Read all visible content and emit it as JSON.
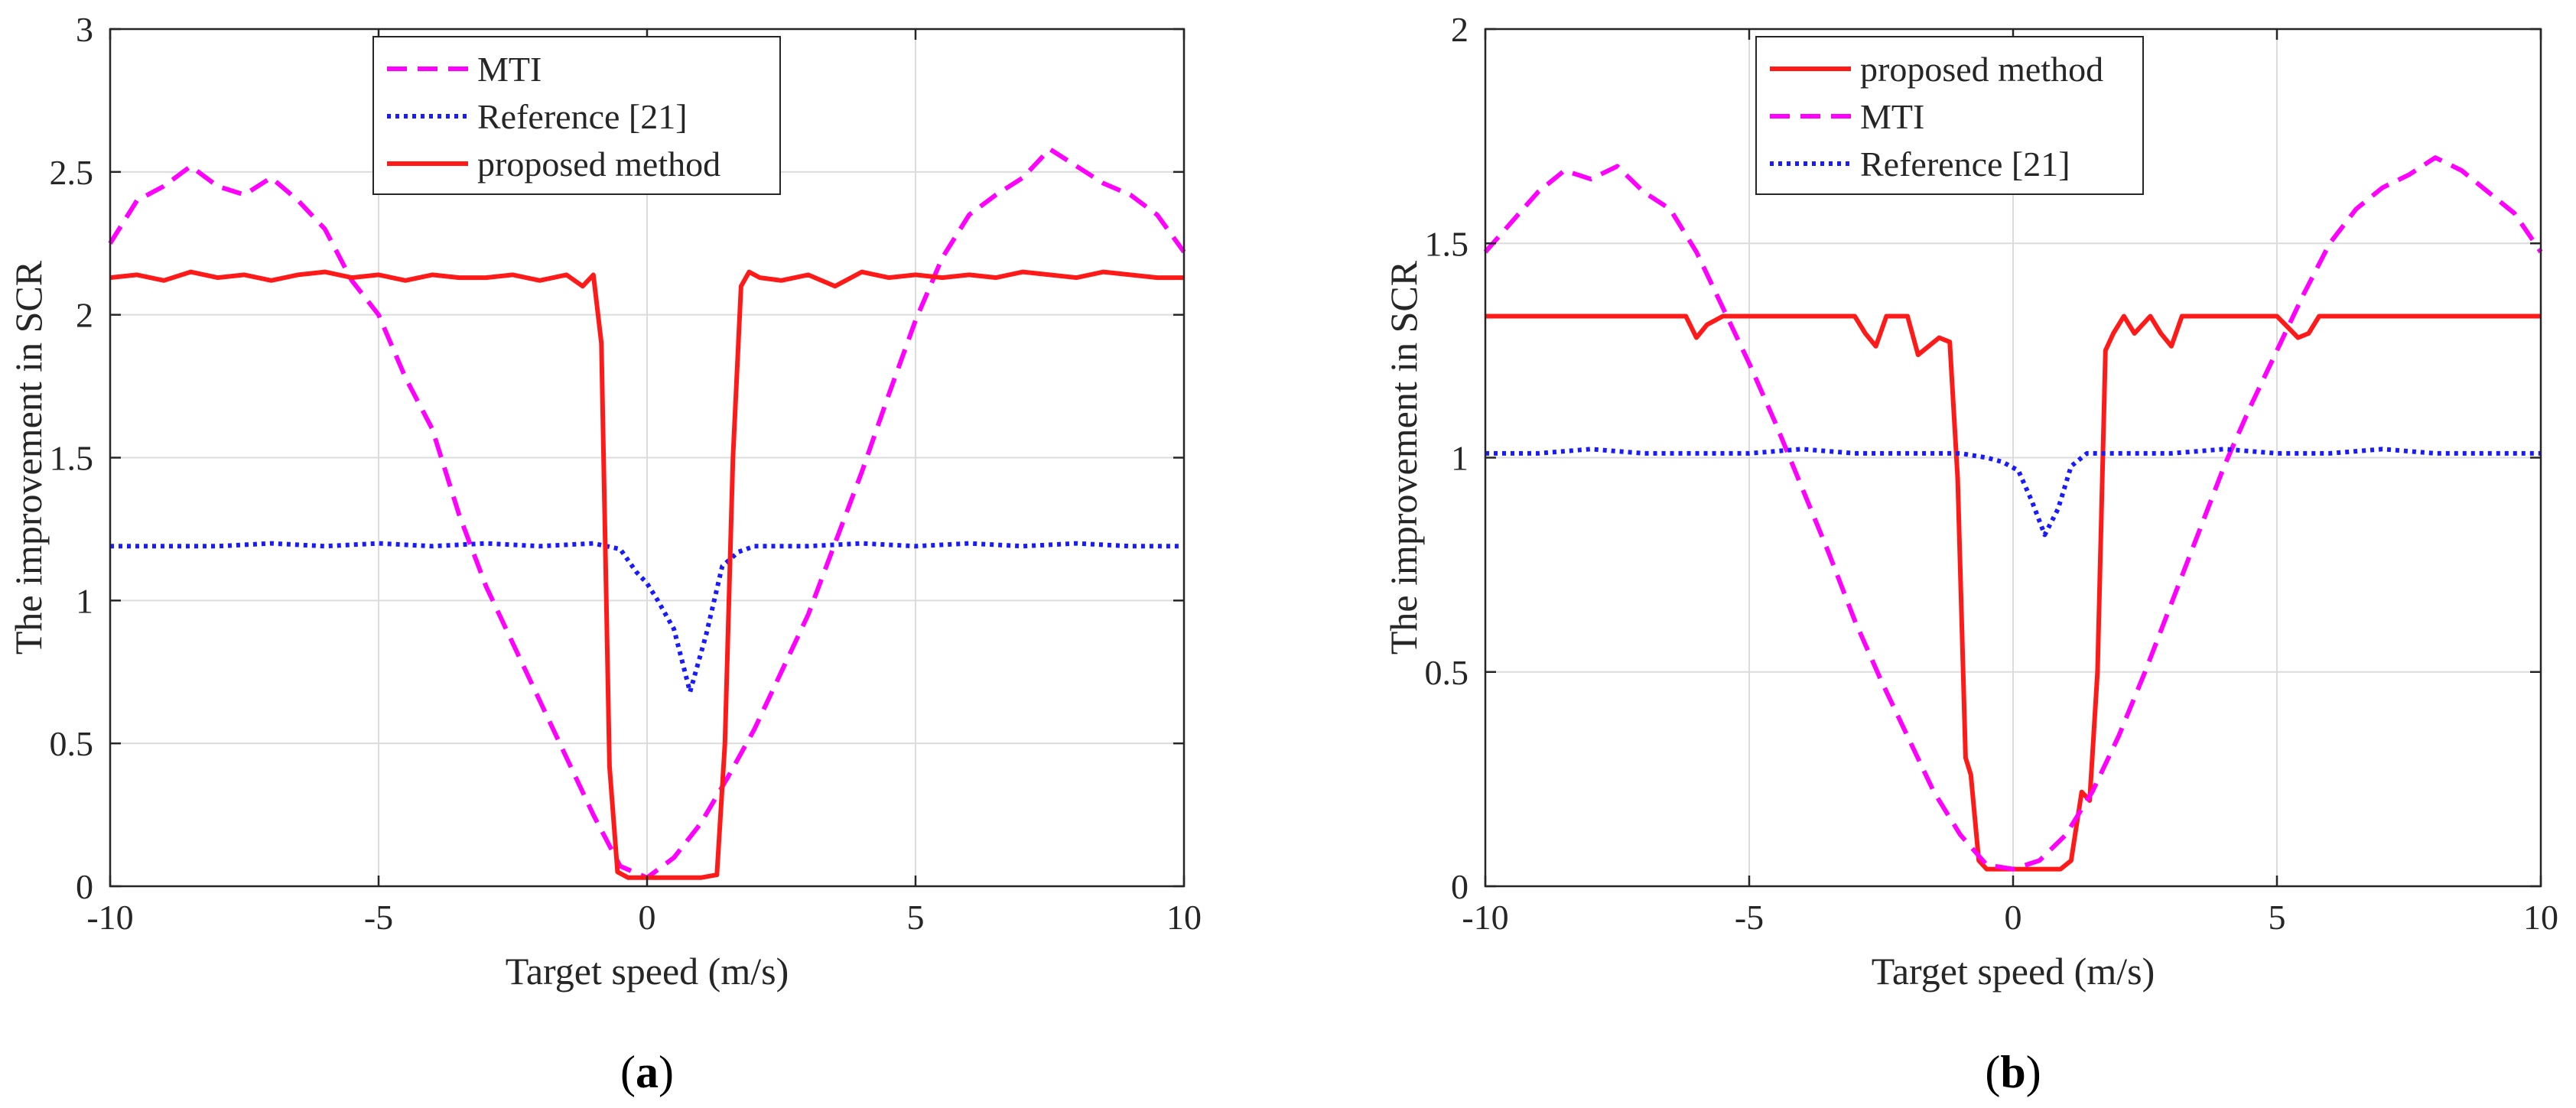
{
  "chart_data": [
    {
      "type": "line",
      "panel_label_open": "(",
      "panel_label_letter": "a",
      "panel_label_close": ")",
      "xlabel": "Target speed (m/s)",
      "ylabel": "The improvement in SCR",
      "xlim": [
        -10,
        10
      ],
      "ylim": [
        0,
        3
      ],
      "xticks": [
        -10,
        -5,
        0,
        5,
        10
      ],
      "xtick_labels": [
        "-10",
        "-5",
        "0",
        "5",
        "10"
      ],
      "yticks": [
        0,
        0.5,
        1,
        1.5,
        2,
        2.5,
        3
      ],
      "ytick_labels": [
        "0",
        "0.5",
        "1",
        "1.5",
        "2",
        "2.5",
        "3"
      ],
      "grid": true,
      "legend_position": "top-center",
      "series": [
        {
          "name": "MTI",
          "color": "#ff00ff",
          "style": "dashed",
          "x": [
            -10,
            -9.5,
            -9,
            -8.5,
            -8,
            -7.5,
            -7,
            -6.5,
            -6,
            -5.5,
            -5,
            -4.5,
            -4,
            -3.5,
            -3,
            -2.5,
            -2,
            -1.5,
            -1,
            -0.5,
            0,
            0.5,
            1,
            1.5,
            2,
            2.5,
            3,
            3.5,
            4,
            4.5,
            5,
            5.5,
            6,
            6.5,
            7,
            7.5,
            8,
            8.5,
            9,
            9.5,
            10
          ],
          "y": [
            2.25,
            2.4,
            2.45,
            2.52,
            2.45,
            2.42,
            2.48,
            2.4,
            2.3,
            2.12,
            2.0,
            1.78,
            1.6,
            1.3,
            1.05,
            0.85,
            0.65,
            0.45,
            0.25,
            0.07,
            0.03,
            0.1,
            0.22,
            0.38,
            0.55,
            0.75,
            0.95,
            1.2,
            1.45,
            1.72,
            1.98,
            2.2,
            2.35,
            2.42,
            2.48,
            2.58,
            2.52,
            2.46,
            2.42,
            2.35,
            2.22
          ]
        },
        {
          "name": "Reference [21]",
          "color": "#1a1aff",
          "style": "dotted",
          "x": [
            -10,
            -9,
            -8,
            -7,
            -6,
            -5,
            -4,
            -3,
            -2,
            -1,
            -0.5,
            -0.2,
            0,
            0.2,
            0.5,
            0.8,
            1.1,
            1.4,
            1.7,
            2,
            3,
            4,
            5,
            6,
            7,
            8,
            9,
            10
          ],
          "y": [
            1.19,
            1.19,
            1.19,
            1.2,
            1.19,
            1.2,
            1.19,
            1.2,
            1.19,
            1.2,
            1.18,
            1.1,
            1.06,
            1.0,
            0.9,
            0.68,
            0.88,
            1.12,
            1.17,
            1.19,
            1.19,
            1.2,
            1.19,
            1.2,
            1.19,
            1.2,
            1.19,
            1.19
          ]
        },
        {
          "name": "proposed method",
          "color": "#ff1a1a",
          "style": "solid",
          "x": [
            -10,
            -9.5,
            -9,
            -8.5,
            -8,
            -7.5,
            -7,
            -6.5,
            -6,
            -5.5,
            -5,
            -4.5,
            -4,
            -3.5,
            -3,
            -2.5,
            -2,
            -1.5,
            -1.2,
            -1.0,
            -0.85,
            -0.7,
            -0.55,
            -0.35,
            0,
            0.5,
            1.0,
            1.3,
            1.45,
            1.6,
            1.75,
            1.9,
            2.1,
            2.5,
            3,
            3.5,
            4,
            4.5,
            5,
            5.5,
            6,
            6.5,
            7,
            7.5,
            8,
            8.5,
            9,
            9.5,
            10
          ],
          "y": [
            2.13,
            2.14,
            2.12,
            2.15,
            2.13,
            2.14,
            2.12,
            2.14,
            2.15,
            2.13,
            2.14,
            2.12,
            2.14,
            2.13,
            2.13,
            2.14,
            2.12,
            2.14,
            2.1,
            2.14,
            1.9,
            0.42,
            0.05,
            0.03,
            0.03,
            0.03,
            0.03,
            0.04,
            0.5,
            1.5,
            2.1,
            2.15,
            2.13,
            2.12,
            2.14,
            2.1,
            2.15,
            2.13,
            2.14,
            2.13,
            2.14,
            2.13,
            2.15,
            2.14,
            2.13,
            2.15,
            2.14,
            2.13,
            2.13
          ]
        }
      ]
    },
    {
      "type": "line",
      "panel_label_open": "(",
      "panel_label_letter": "b",
      "panel_label_close": ")",
      "xlabel": "Target speed (m/s)",
      "ylabel": "The improvement in SCR",
      "xlim": [
        -10,
        10
      ],
      "ylim": [
        0,
        2
      ],
      "xticks": [
        -10,
        -5,
        0,
        5,
        10
      ],
      "xtick_labels": [
        "-10",
        "-5",
        "0",
        "5",
        "10"
      ],
      "yticks": [
        0,
        0.5,
        1,
        1.5,
        2
      ],
      "ytick_labels": [
        "0",
        "0.5",
        "1",
        "1.5",
        "2"
      ],
      "grid": true,
      "legend_position": "top-center",
      "series": [
        {
          "name": "proposed method",
          "color": "#ff1a1a",
          "style": "solid",
          "x": [
            -10,
            -9,
            -8,
            -7,
            -6.2,
            -6,
            -5.8,
            -5.5,
            -5,
            -4.5,
            -4,
            -3.5,
            -3,
            -2.8,
            -2.6,
            -2.4,
            -2.2,
            -2.0,
            -1.8,
            -1.6,
            -1.4,
            -1.2,
            -1.05,
            -0.9,
            -0.8,
            -0.65,
            -0.5,
            -0.3,
            0,
            0.5,
            0.9,
            1.1,
            1.3,
            1.45,
            1.6,
            1.75,
            1.9,
            2.1,
            2.3,
            2.6,
            2.8,
            3.0,
            3.2,
            3.4,
            3.8,
            4.2,
            4.6,
            5,
            5.4,
            5.6,
            5.8,
            6.2,
            7,
            8,
            9,
            10
          ],
          "y": [
            1.33,
            1.33,
            1.33,
            1.33,
            1.33,
            1.28,
            1.31,
            1.33,
            1.33,
            1.33,
            1.33,
            1.33,
            1.33,
            1.29,
            1.26,
            1.33,
            1.33,
            1.33,
            1.24,
            1.26,
            1.28,
            1.27,
            0.95,
            0.3,
            0.26,
            0.06,
            0.04,
            0.04,
            0.04,
            0.04,
            0.04,
            0.06,
            0.22,
            0.2,
            0.5,
            1.25,
            1.29,
            1.33,
            1.29,
            1.33,
            1.29,
            1.26,
            1.33,
            1.33,
            1.33,
            1.33,
            1.33,
            1.33,
            1.28,
            1.29,
            1.33,
            1.33,
            1.33,
            1.33,
            1.33,
            1.33
          ]
        },
        {
          "name": "MTI",
          "color": "#ff00ff",
          "style": "dashed",
          "x": [
            -10,
            -9.5,
            -9,
            -8.5,
            -8,
            -7.5,
            -7,
            -6.5,
            -6,
            -5.5,
            -5,
            -4.5,
            -4,
            -3.5,
            -3,
            -2.5,
            -2,
            -1.5,
            -1,
            -0.5,
            0,
            0.5,
            1,
            1.5,
            2,
            2.5,
            3,
            3.5,
            4,
            4.5,
            5,
            5.5,
            6,
            6.5,
            7,
            7.5,
            8,
            8.5,
            9,
            9.5,
            10
          ],
          "y": [
            1.48,
            1.55,
            1.62,
            1.67,
            1.65,
            1.68,
            1.62,
            1.58,
            1.48,
            1.35,
            1.22,
            1.08,
            0.93,
            0.78,
            0.62,
            0.48,
            0.35,
            0.22,
            0.12,
            0.05,
            0.04,
            0.06,
            0.12,
            0.22,
            0.35,
            0.5,
            0.66,
            0.82,
            0.98,
            1.12,
            1.25,
            1.38,
            1.5,
            1.58,
            1.63,
            1.66,
            1.7,
            1.67,
            1.62,
            1.57,
            1.48
          ]
        },
        {
          "name": "Reference [21]",
          "color": "#1a1aff",
          "style": "dotted",
          "x": [
            -10,
            -9,
            -8,
            -7,
            -6,
            -5,
            -4,
            -3,
            -2,
            -1,
            -0.5,
            -0.2,
            0.1,
            0.35,
            0.6,
            0.85,
            1.1,
            1.4,
            2,
            3,
            4,
            5,
            6,
            7,
            8,
            9,
            10
          ],
          "y": [
            1.01,
            1.01,
            1.02,
            1.01,
            1.01,
            1.01,
            1.02,
            1.01,
            1.01,
            1.01,
            1.0,
            0.99,
            0.97,
            0.9,
            0.82,
            0.88,
            0.98,
            1.01,
            1.01,
            1.01,
            1.02,
            1.01,
            1.01,
            1.02,
            1.01,
            1.01,
            1.01
          ]
        }
      ]
    }
  ]
}
